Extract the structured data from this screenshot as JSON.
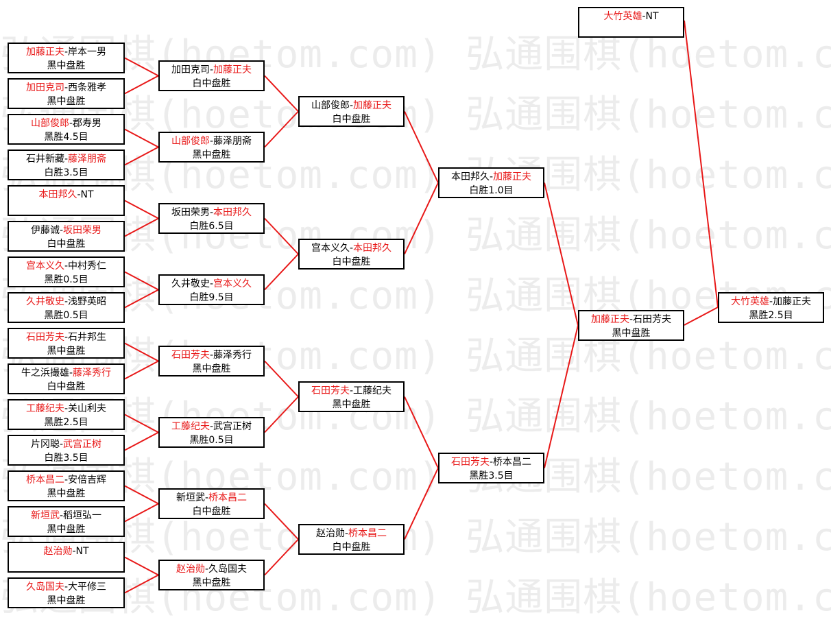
{
  "watermark": "弘通围棋(hoetom.com) 弘通围棋(hoetom.com)",
  "line_color": "#e81818",
  "winner_color": "#e81818",
  "rounds": [
    [
      {
        "a": "加藤正夫",
        "b": "岸本一男",
        "w": "a",
        "result": "黑中盘胜"
      },
      {
        "a": "加田克司",
        "b": "西条雅孝",
        "w": "a",
        "result": "黑中盘胜"
      },
      {
        "a": "山部俊郎",
        "b": "郡寿男",
        "w": "a",
        "result": "黑胜4.5目"
      },
      {
        "a": "石井新藏",
        "b": "藤泽朋斋",
        "w": "b",
        "result": "白胜3.5目"
      },
      {
        "a": "本田邦久",
        "b": "NT",
        "w": "a",
        "result": ""
      },
      {
        "a": "伊藤诚",
        "b": "坂田荣男",
        "w": "b",
        "result": "白中盘胜"
      },
      {
        "a": "宫本义久",
        "b": "中村秀仁",
        "w": "a",
        "result": "黑胜0.5目"
      },
      {
        "a": "久井敬史",
        "b": "浅野英昭",
        "w": "a",
        "result": "黑胜0.5目"
      },
      {
        "a": "石田芳夫",
        "b": "石井邦生",
        "w": "a",
        "result": "黑中盘胜"
      },
      {
        "a": "牛之浜撮雄",
        "b": "藤泽秀行",
        "w": "b",
        "result": "白中盘胜"
      },
      {
        "a": "工藤纪夫",
        "b": "关山利夫",
        "w": "a",
        "result": "黑胜2.5目"
      },
      {
        "a": "片冈聪",
        "b": "武宫正树",
        "w": "b",
        "result": "白胜3.5目"
      },
      {
        "a": "桥本昌二",
        "b": "安倍吉辉",
        "w": "a",
        "result": "黑中盘胜"
      },
      {
        "a": "新垣武",
        "b": "稻垣弘一",
        "w": "a",
        "result": "黑中盘胜"
      },
      {
        "a": "赵治勋",
        "b": "NT",
        "w": "a",
        "result": ""
      },
      {
        "a": "久岛国夫",
        "b": "大平修三",
        "w": "a",
        "result": "黑中盘胜"
      }
    ],
    [
      {
        "a": "加田克司",
        "b": "加藤正夫",
        "w": "b",
        "result": "白中盘胜"
      },
      {
        "a": "山部俊郎",
        "b": "藤泽朋斋",
        "w": "a",
        "result": "黑中盘胜"
      },
      {
        "a": "坂田荣男",
        "b": "本田邦久",
        "w": "b",
        "result": "白胜6.5目"
      },
      {
        "a": "久井敬史",
        "b": "宫本义久",
        "w": "b",
        "result": "白胜9.5目"
      },
      {
        "a": "石田芳夫",
        "b": "藤泽秀行",
        "w": "a",
        "result": "黑中盘胜"
      },
      {
        "a": "工藤纪夫",
        "b": "武宫正树",
        "w": "a",
        "result": "黑胜0.5目"
      },
      {
        "a": "新垣武",
        "b": "桥本昌二",
        "w": "b",
        "result": "白中盘胜"
      },
      {
        "a": "赵治勋",
        "b": "久岛国夫",
        "w": "a",
        "result": "黑中盘胜"
      }
    ],
    [
      {
        "a": "山部俊郎",
        "b": "加藤正夫",
        "w": "b",
        "result": "白中盘胜"
      },
      {
        "a": "宫本义久",
        "b": "本田邦久",
        "w": "b",
        "result": "白中盘胜"
      },
      {
        "a": "石田芳夫",
        "b": "工藤纪夫",
        "w": "a",
        "result": "黑中盘胜"
      },
      {
        "a": "赵治勋",
        "b": "桥本昌二",
        "w": "b",
        "result": "白中盘胜"
      }
    ],
    [
      {
        "a": "本田邦久",
        "b": "加藤正夫",
        "w": "b",
        "result": "白胜1.0目"
      },
      {
        "a": "石田芳夫",
        "b": "桥本昌二",
        "w": "a",
        "result": "黑胜3.5目"
      }
    ],
    [
      {
        "a": "加藤正夫",
        "b": "石田芳夫",
        "w": "a",
        "result": "黑中盘胜"
      }
    ]
  ],
  "seed": {
    "a": "大竹英雄",
    "b": "NT",
    "w": "a",
    "result": ""
  },
  "final": {
    "a": "大竹英雄",
    "b": "加藤正夫",
    "w": "a",
    "result": "黑胜2.5目"
  }
}
